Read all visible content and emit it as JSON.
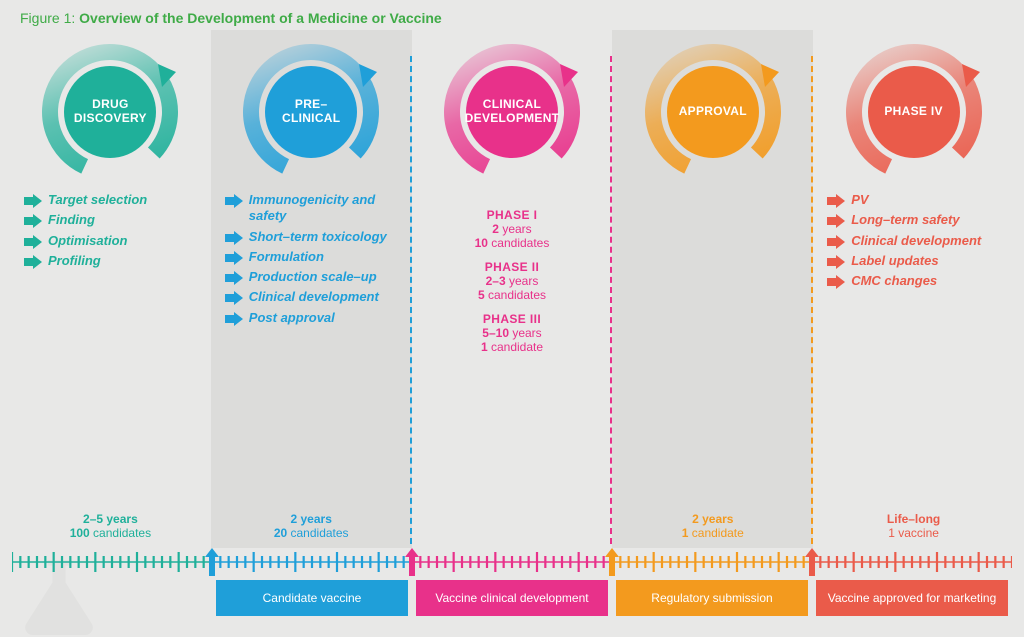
{
  "title": {
    "prefix": "Figure 1:",
    "text": "Overview of the Development of a Medicine or Vaccine"
  },
  "colors": {
    "bg": "#e8e8e7",
    "shade": "#dcdcda",
    "title_green": "#3fab47",
    "teal": "#1fb09a",
    "blue": "#1f9fd9",
    "pink": "#e8318a",
    "orange": "#f39a1e",
    "red": "#ea5b4a"
  },
  "stages": [
    {
      "key": "discovery",
      "shaded": false,
      "color": "#1fb09a",
      "label": "DRUG DISCOVERY",
      "bullets": [
        "Target selection",
        "Finding",
        "Optimisation",
        "Profiling"
      ],
      "summary": {
        "years": "2–5 years",
        "count_bold": "100",
        "count_rest": " candidates"
      },
      "divider_after": false,
      "bar": null
    },
    {
      "key": "preclinical",
      "shaded": true,
      "color": "#1f9fd9",
      "label": "PRE–\nCLINICAL",
      "bullets": [
        "Immunogenicity and safety",
        "Short–term toxicology",
        "Formulation",
        "Production scale–up",
        "Clinical development",
        "Post approval"
      ],
      "summary": {
        "years": "2 years",
        "count_bold": "20",
        "count_rest": " candidates"
      },
      "divider_after": true,
      "divider_color": "#1f9fd9",
      "bar": {
        "text": "Candidate vaccine",
        "bg": "#1f9fd9"
      }
    },
    {
      "key": "clinical",
      "shaded": false,
      "color": "#e8318a",
      "label": "CLINICAL DEVELOPMENT",
      "bullets": [],
      "subphases": [
        {
          "title": "PHASE I",
          "years": "2",
          "count": "10",
          "unit": "candidates"
        },
        {
          "title": "PHASE II",
          "years": "2–3",
          "count": "5",
          "unit": "candidates"
        },
        {
          "title": "PHASE III",
          "years": "5–10",
          "count": "1",
          "unit": "candidate"
        }
      ],
      "summary": null,
      "divider_after": true,
      "divider_color": "#e8318a",
      "bar": {
        "text": "Vaccine clinical development",
        "bg": "#e8318a"
      }
    },
    {
      "key": "approval",
      "shaded": true,
      "color": "#f39a1e",
      "label": "APPROVAL",
      "bullets": [],
      "summary": {
        "years": "2 years",
        "count_bold": "1",
        "count_rest": " candidate"
      },
      "divider_after": true,
      "divider_color": "#f39a1e",
      "bar": {
        "text": "Regulatory submission",
        "bg": "#f39a1e"
      }
    },
    {
      "key": "phase4",
      "shaded": false,
      "color": "#ea5b4a",
      "label": "PHASE IV",
      "bullets": [
        "PV",
        "Long–term safety",
        "Clinical development",
        "Label updates",
        "CMC changes"
      ],
      "summary": {
        "years": "Life–long",
        "count_bold": "",
        "count_rest": "1 vaccine"
      },
      "divider_after": false,
      "bar": {
        "text": "Vaccine approved for marketing",
        "bg": "#ea5b4a"
      }
    }
  ],
  "ruler": {
    "segments": [
      {
        "color": "#1fb09a",
        "from_pct": 0,
        "to_pct": 20
      },
      {
        "color": "#1f9fd9",
        "from_pct": 20,
        "to_pct": 40
      },
      {
        "color": "#e8318a",
        "from_pct": 40,
        "to_pct": 60
      },
      {
        "color": "#f39a1e",
        "from_pct": 60,
        "to_pct": 80
      },
      {
        "color": "#ea5b4a",
        "from_pct": 80,
        "to_pct": 100
      }
    ],
    "arrows_at_pct": [
      {
        "pct": 20,
        "color": "#1f9fd9"
      },
      {
        "pct": 40,
        "color": "#e8318a"
      },
      {
        "pct": 60,
        "color": "#f39a1e"
      },
      {
        "pct": 80,
        "color": "#ea5b4a"
      }
    ],
    "ticks_per_segment": 24
  }
}
